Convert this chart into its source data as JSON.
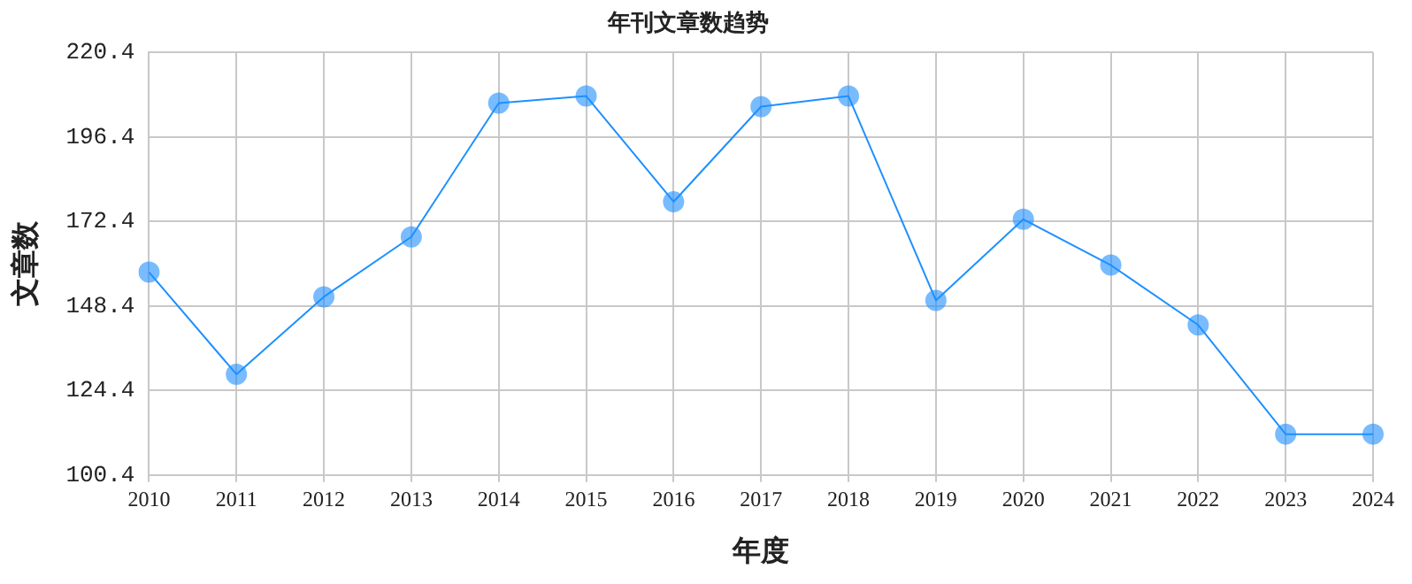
{
  "chart_data": {
    "type": "line",
    "title": "年刊文章数趋势",
    "xlabel": "年度",
    "ylabel": "文章数",
    "categories": [
      "2010",
      "2011",
      "2012",
      "2013",
      "2014",
      "2015",
      "2016",
      "2017",
      "2018",
      "2019",
      "2020",
      "2021",
      "2022",
      "2023",
      "2024"
    ],
    "series": [
      {
        "color": "#1e90ff",
        "values": [
          158,
          129,
          151,
          168,
          206,
          208,
          178,
          205,
          208,
          150,
          173,
          160,
          143,
          112,
          112
        ]
      }
    ],
    "ylim": [
      100.4,
      220.4
    ],
    "yticks": [
      100.4,
      124.4,
      148.4,
      172.4,
      196.4,
      220.4
    ],
    "grid": true,
    "legend": false,
    "marker": "circle",
    "line_style": "solid"
  }
}
